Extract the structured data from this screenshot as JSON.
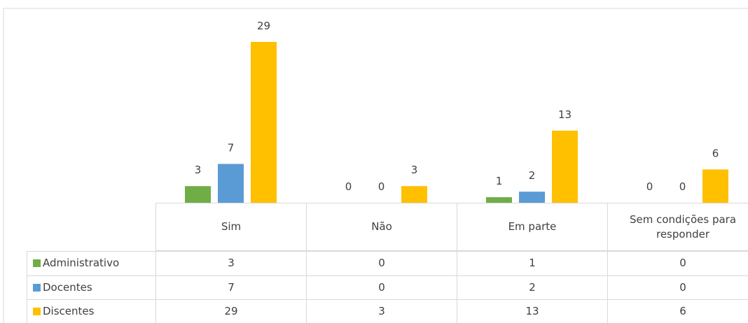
{
  "chart_data": {
    "type": "bar",
    "categories": [
      "Sim",
      "Não",
      "Em parte",
      "Sem condições para responder"
    ],
    "series": [
      {
        "name": "Administrativo",
        "color": "#70ad47",
        "values": [
          3,
          0,
          1,
          0
        ]
      },
      {
        "name": "Docentes",
        "color": "#5b9bd5",
        "values": [
          7,
          0,
          2,
          0
        ]
      },
      {
        "name": "Discentes",
        "color": "#ffc000",
        "values": [
          29,
          3,
          13,
          6
        ]
      }
    ],
    "ylim": [
      0,
      30
    ],
    "legend": "table"
  }
}
